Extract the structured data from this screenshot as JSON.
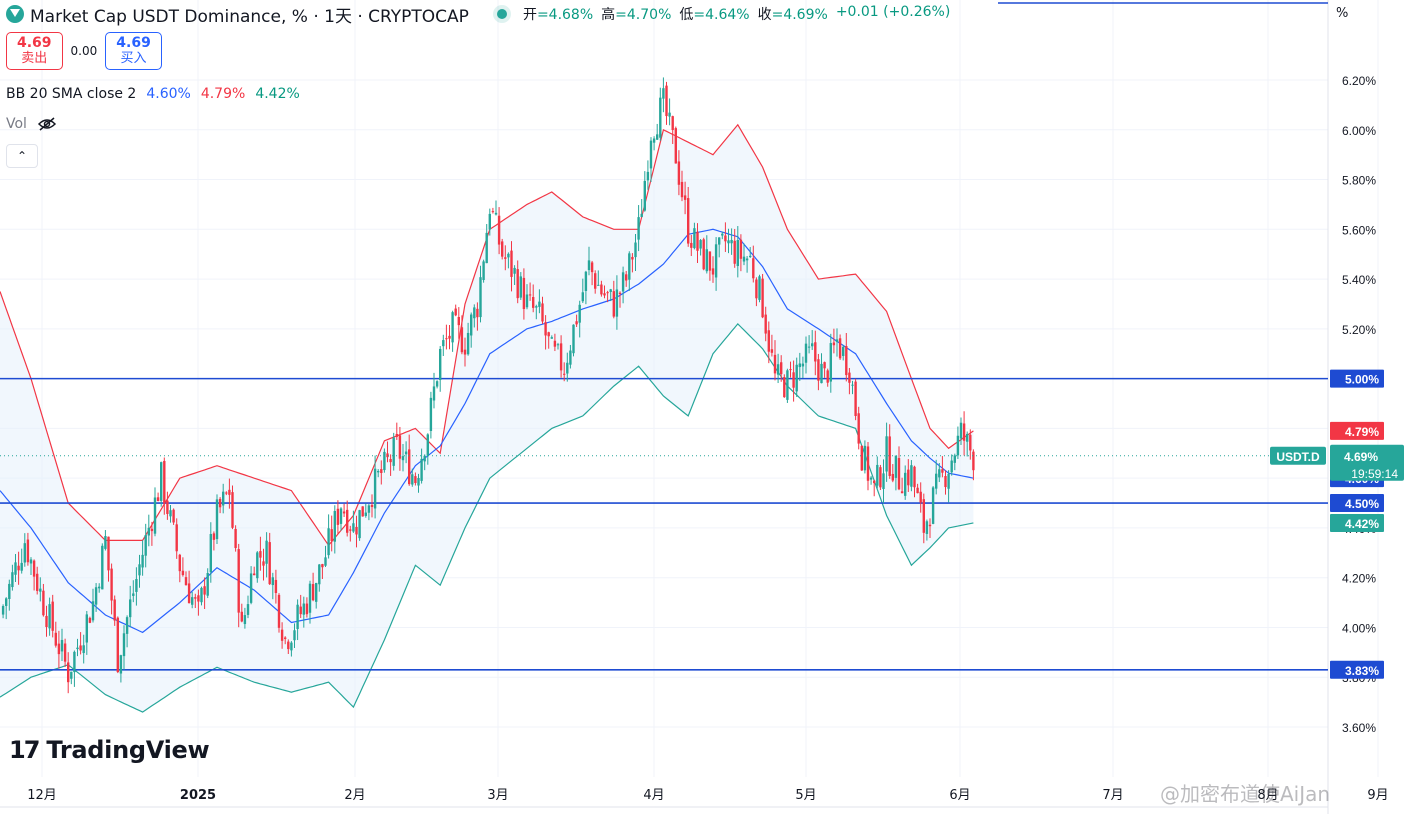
{
  "header": {
    "title": "Market Cap USDT Dominance, % · 1天 · CRYPTOCAP",
    "ohlc": [
      {
        "label": "开",
        "value": "4.68%"
      },
      {
        "label": "高",
        "value": "4.70%"
      },
      {
        "label": "低",
        "value": "4.64%"
      },
      {
        "label": "收",
        "value": "4.69%"
      }
    ],
    "change": "+0.01 (+0.26%)"
  },
  "trade": {
    "sell_price": "4.69",
    "sell_label": "卖出",
    "spread": "0.00",
    "buy_price": "4.69",
    "buy_label": "买入"
  },
  "indicator": {
    "name": "BB 20 SMA close 2",
    "basis": "4.60%",
    "upper": "4.79%",
    "lower": "4.42%"
  },
  "volume_label": "Vol",
  "brand": "TradingView",
  "watermark": "@加密布道使AiJan",
  "percent_symbol": "%",
  "colors": {
    "up": "#26a69a",
    "down": "#f23645",
    "basis": "#2962ff",
    "upper": "#f23645",
    "lower": "#26a69a",
    "hline": "#1e4bd2",
    "band_fill": "#e6f0fb"
  },
  "chart_data": {
    "type": "candlestick",
    "symbol_tag": "USDT.D",
    "last_value": "4.69%",
    "countdown": "19:59:14",
    "ylim": [
      3.5,
      6.32
    ],
    "y_ticks": [
      "3.60%",
      "3.80%",
      "4.00%",
      "4.20%",
      "4.40%",
      "4.60%",
      "4.80%",
      "5.00%",
      "5.20%",
      "5.40%",
      "5.60%",
      "5.80%",
      "6.00%",
      "6.20%"
    ],
    "x_ticks": [
      "12月",
      "2025",
      "2月",
      "3月",
      "4月",
      "5月",
      "6月",
      "7月",
      "8月",
      "9月"
    ],
    "horizontal_lines": [
      5.0,
      4.5,
      3.83
    ],
    "price_labels": [
      {
        "value": 5.0,
        "text": "5.00%",
        "kind": "line"
      },
      {
        "value": 4.79,
        "text": "4.79%",
        "kind": "upper"
      },
      {
        "value": 4.6,
        "text": "4.60%",
        "kind": "basis"
      },
      {
        "value": 4.5,
        "text": "4.50%",
        "kind": "line"
      },
      {
        "value": 4.42,
        "text": "4.42%",
        "kind": "lower"
      },
      {
        "value": 3.83,
        "text": "3.83%",
        "kind": "line"
      }
    ],
    "path": [
      [
        0,
        4.05
      ],
      [
        8,
        4.35
      ],
      [
        14,
        4.1
      ],
      [
        22,
        3.82
      ],
      [
        30,
        4.1
      ],
      [
        34,
        4.35
      ],
      [
        38,
        3.88
      ],
      [
        46,
        4.3
      ],
      [
        52,
        4.6
      ],
      [
        58,
        4.25
      ],
      [
        64,
        4.05
      ],
      [
        70,
        4.45
      ],
      [
        74,
        4.55
      ],
      [
        78,
        3.98
      ],
      [
        82,
        4.28
      ],
      [
        86,
        4.3
      ],
      [
        92,
        3.95
      ],
      [
        98,
        4.08
      ],
      [
        104,
        4.25
      ],
      [
        110,
        4.5
      ],
      [
        114,
        4.4
      ],
      [
        122,
        4.6
      ],
      [
        128,
        4.72
      ],
      [
        134,
        4.6
      ],
      [
        138,
        4.8
      ],
      [
        142,
        5.1
      ],
      [
        146,
        5.2
      ],
      [
        150,
        5.15
      ],
      [
        154,
        5.3
      ],
      [
        158,
        5.7
      ],
      [
        162,
        5.5
      ],
      [
        166,
        5.42
      ],
      [
        170,
        5.3
      ],
      [
        174,
        5.25
      ],
      [
        178,
        5.1
      ],
      [
        182,
        5.05
      ],
      [
        186,
        5.25
      ],
      [
        190,
        5.45
      ],
      [
        194,
        5.35
      ],
      [
        198,
        5.3
      ],
      [
        202,
        5.4
      ],
      [
        206,
        5.6
      ],
      [
        210,
        6.0
      ],
      [
        214,
        6.1
      ],
      [
        218,
        5.9
      ],
      [
        222,
        5.6
      ],
      [
        226,
        5.5
      ],
      [
        230,
        5.45
      ],
      [
        234,
        5.55
      ],
      [
        238,
        5.5
      ],
      [
        242,
        5.48
      ],
      [
        246,
        5.3
      ],
      [
        250,
        5.0
      ],
      [
        254,
        4.98
      ],
      [
        258,
        5.05
      ],
      [
        262,
        5.1
      ],
      [
        266,
        5.0
      ],
      [
        270,
        5.15
      ],
      [
        274,
        5.05
      ],
      [
        278,
        4.7
      ],
      [
        282,
        4.55
      ],
      [
        286,
        4.7
      ],
      [
        290,
        4.6
      ],
      [
        294,
        4.62
      ],
      [
        298,
        4.4
      ],
      [
        302,
        4.55
      ],
      [
        306,
        4.65
      ],
      [
        310,
        4.78
      ],
      [
        314,
        4.69
      ]
    ],
    "bands": {
      "upper": [
        [
          0,
          5.35
        ],
        [
          10,
          5.0
        ],
        [
          22,
          4.5
        ],
        [
          34,
          4.35
        ],
        [
          46,
          4.35
        ],
        [
          58,
          4.6
        ],
        [
          70,
          4.65
        ],
        [
          82,
          4.6
        ],
        [
          94,
          4.55
        ],
        [
          106,
          4.33
        ],
        [
          114,
          4.45
        ],
        [
          124,
          4.75
        ],
        [
          134,
          4.8
        ],
        [
          142,
          4.7
        ],
        [
          150,
          5.3
        ],
        [
          158,
          5.6
        ],
        [
          170,
          5.7
        ],
        [
          178,
          5.75
        ],
        [
          188,
          5.65
        ],
        [
          198,
          5.6
        ],
        [
          206,
          5.6
        ],
        [
          214,
          6.0
        ],
        [
          222,
          5.95
        ],
        [
          230,
          5.9
        ],
        [
          238,
          6.02
        ],
        [
          246,
          5.85
        ],
        [
          254,
          5.6
        ],
        [
          264,
          5.4
        ],
        [
          276,
          5.42
        ],
        [
          286,
          5.27
        ],
        [
          294,
          5.0
        ],
        [
          300,
          4.8
        ],
        [
          306,
          4.72
        ],
        [
          314,
          4.79
        ]
      ],
      "basis": [
        [
          0,
          4.55
        ],
        [
          10,
          4.4
        ],
        [
          22,
          4.18
        ],
        [
          34,
          4.05
        ],
        [
          46,
          3.98
        ],
        [
          58,
          4.1
        ],
        [
          70,
          4.24
        ],
        [
          82,
          4.15
        ],
        [
          94,
          4.02
        ],
        [
          106,
          4.05
        ],
        [
          114,
          4.22
        ],
        [
          124,
          4.46
        ],
        [
          134,
          4.65
        ],
        [
          142,
          4.73
        ],
        [
          150,
          4.9
        ],
        [
          158,
          5.1
        ],
        [
          170,
          5.2
        ],
        [
          178,
          5.23
        ],
        [
          188,
          5.28
        ],
        [
          198,
          5.32
        ],
        [
          206,
          5.38
        ],
        [
          214,
          5.46
        ],
        [
          222,
          5.58
        ],
        [
          230,
          5.6
        ],
        [
          238,
          5.57
        ],
        [
          246,
          5.45
        ],
        [
          254,
          5.28
        ],
        [
          264,
          5.2
        ],
        [
          276,
          5.1
        ],
        [
          286,
          4.9
        ],
        [
          294,
          4.75
        ],
        [
          300,
          4.68
        ],
        [
          306,
          4.62
        ],
        [
          314,
          4.6
        ]
      ],
      "lower": [
        [
          0,
          3.72
        ],
        [
          10,
          3.8
        ],
        [
          22,
          3.85
        ],
        [
          34,
          3.73
        ],
        [
          46,
          3.66
        ],
        [
          58,
          3.76
        ],
        [
          70,
          3.84
        ],
        [
          82,
          3.78
        ],
        [
          94,
          3.74
        ],
        [
          106,
          3.78
        ],
        [
          114,
          3.68
        ],
        [
          124,
          3.95
        ],
        [
          134,
          4.25
        ],
        [
          142,
          4.17
        ],
        [
          150,
          4.4
        ],
        [
          158,
          4.6
        ],
        [
          170,
          4.72
        ],
        [
          178,
          4.8
        ],
        [
          188,
          4.85
        ],
        [
          198,
          4.97
        ],
        [
          206,
          5.05
        ],
        [
          214,
          4.93
        ],
        [
          222,
          4.85
        ],
        [
          230,
          5.1
        ],
        [
          238,
          5.22
        ],
        [
          246,
          5.12
        ],
        [
          254,
          4.97
        ],
        [
          264,
          4.85
        ],
        [
          276,
          4.8
        ],
        [
          286,
          4.45
        ],
        [
          294,
          4.25
        ],
        [
          300,
          4.32
        ],
        [
          306,
          4.4
        ],
        [
          314,
          4.42
        ]
      ]
    }
  }
}
